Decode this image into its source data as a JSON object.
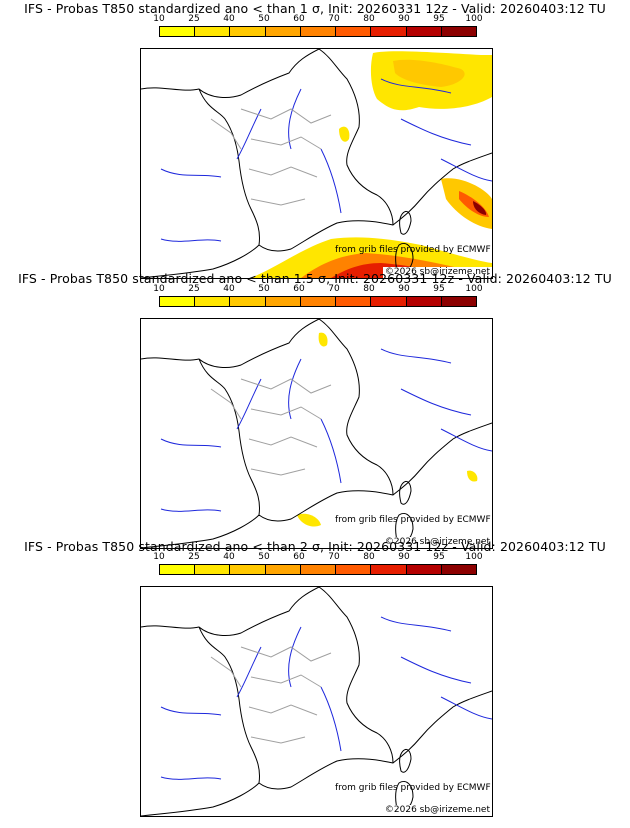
{
  "panels": [
    {
      "title": "IFS - Probas T850  standardized ano < than 1 σ, Init: 20260331 12z - Valid: 20260403:12 TU",
      "threshold_sigma": 1,
      "source_text": "from grib files provided by ECMWF",
      "credit_text": "©2026 sb@irizeme.net"
    },
    {
      "title": "IFS - Probas T850  standardized ano < than 1.5 σ, Init: 20260331 12z - Valid: 20260403:12 TU",
      "threshold_sigma": 1.5,
      "source_text": "from grib files provided by ECMWF",
      "credit_text": "©2026 sb@irizeme.net"
    },
    {
      "title": "IFS - Probas T850  standardized ano < than 2 σ, Init: 20260331 12z - Valid: 20260403:12 TU",
      "threshold_sigma": 2,
      "source_text": "from grib files provided by ECMWF",
      "credit_text": "©2026 sb@irizeme.net"
    }
  ],
  "colorbar": {
    "ticks": [
      "10",
      "25",
      "40",
      "50",
      "60",
      "70",
      "80",
      "90",
      "95",
      "100"
    ],
    "colors": [
      "#ffff00",
      "#ffe600",
      "#ffc800",
      "#ffa500",
      "#ff8200",
      "#ff5a00",
      "#e61e00",
      "#b40000",
      "#8c0000"
    ]
  },
  "map_colors": {
    "coast": "#000000",
    "rivers": "#1e28dc",
    "admin": "#a0a0a0"
  }
}
